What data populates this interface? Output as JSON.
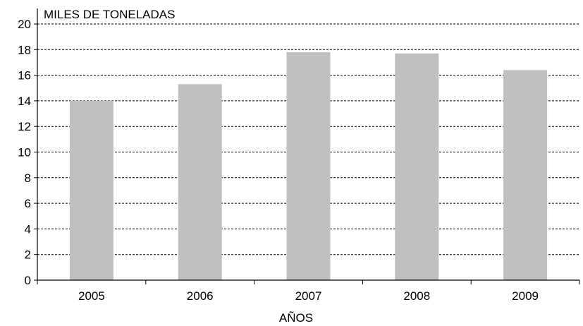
{
  "chart_data": {
    "type": "bar",
    "categories": [
      "2005",
      "2006",
      "2007",
      "2008",
      "2009"
    ],
    "values": [
      14.0,
      15.3,
      17.8,
      17.7,
      16.4
    ],
    "title": "",
    "xlabel": "AÑOS",
    "ylabel": "MILES DE TONELADAS",
    "ylim": [
      0,
      20
    ],
    "yticks": [
      "0",
      "2",
      "4",
      "6",
      "8",
      "10",
      "12",
      "14",
      "16",
      "18",
      "20"
    ],
    "grid": true,
    "legend": "none",
    "colors": {
      "bar": "#c0c0c0",
      "grid": "#000000",
      "axis": "#000000"
    }
  }
}
